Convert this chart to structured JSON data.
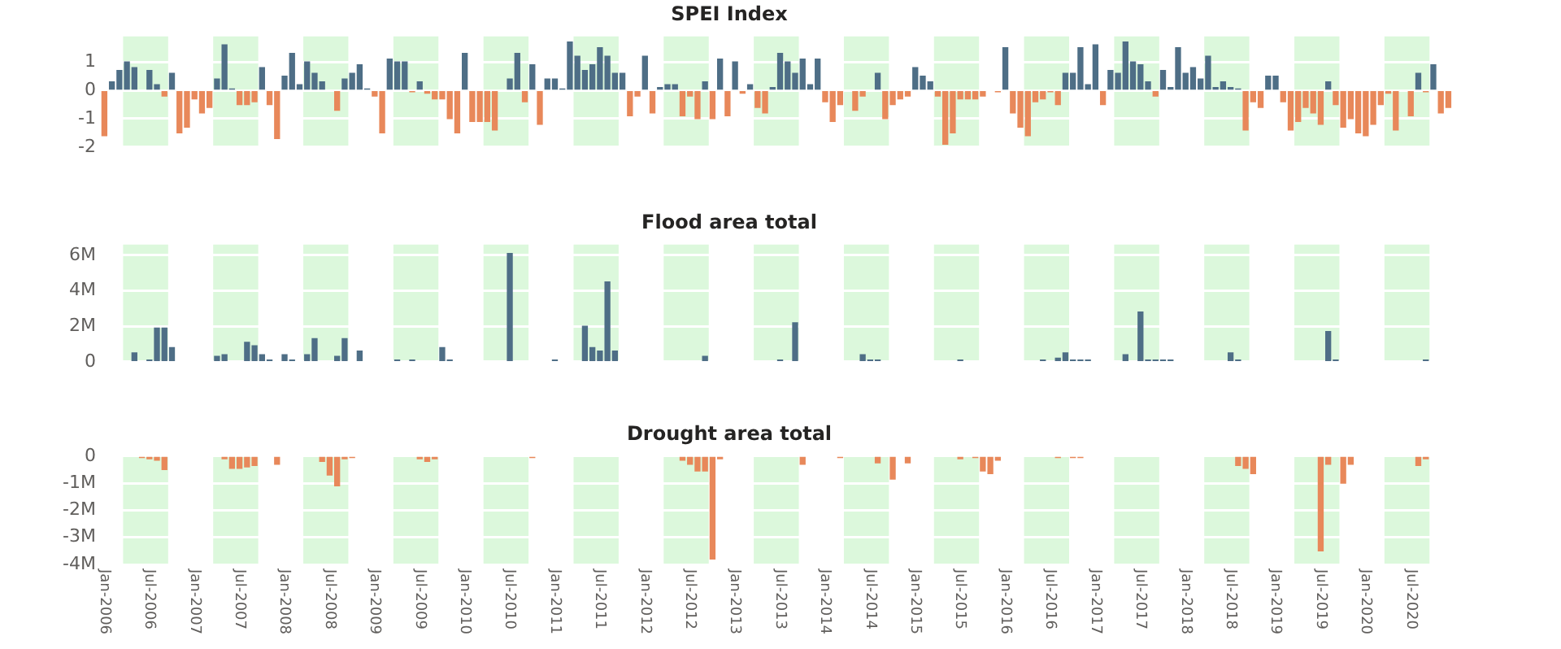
{
  "chart_data": [
    {
      "type": "bar",
      "title": "SPEI Index",
      "tick_labels": "y",
      "grid": "y",
      "x": [
        "2006-01",
        "2006-02",
        "2006-03",
        "2006-04",
        "2006-05",
        "2006-06",
        "2006-07",
        "2006-08",
        "2006-09",
        "2006-10",
        "2006-11",
        "2006-12",
        "2007-01",
        "2007-02",
        "2007-03",
        "2007-04",
        "2007-05",
        "2007-06",
        "2007-07",
        "2007-08",
        "2007-09",
        "2007-10",
        "2007-11",
        "2007-12",
        "2008-01",
        "2008-02",
        "2008-03",
        "2008-04",
        "2008-05",
        "2008-06",
        "2008-07",
        "2008-08",
        "2008-09",
        "2008-10",
        "2008-11",
        "2008-12",
        "2009-01",
        "2009-02",
        "2009-03",
        "2009-04",
        "2009-05",
        "2009-06",
        "2009-07",
        "2009-08",
        "2009-09",
        "2009-10",
        "2009-11",
        "2009-12",
        "2010-01",
        "2010-02",
        "2010-03",
        "2010-04",
        "2010-05",
        "2010-06",
        "2010-07",
        "2010-08",
        "2010-09",
        "2010-10",
        "2010-11",
        "2010-12",
        "2011-01",
        "2011-02",
        "2011-03",
        "2011-04",
        "2011-05",
        "2011-06",
        "2011-07",
        "2011-08",
        "2011-09",
        "2011-10",
        "2011-11",
        "2011-12",
        "2012-01",
        "2012-02",
        "2012-03",
        "2012-04",
        "2012-05",
        "2012-06",
        "2012-07",
        "2012-08",
        "2012-09",
        "2012-10",
        "2012-11",
        "2012-12",
        "2013-01",
        "2013-02",
        "2013-03",
        "2013-04",
        "2013-05",
        "2013-06",
        "2013-07",
        "2013-08",
        "2013-09",
        "2013-10",
        "2013-11",
        "2013-12",
        "2014-01",
        "2014-02",
        "2014-03",
        "2014-04",
        "2014-05",
        "2014-06",
        "2014-07",
        "2014-08",
        "2014-09",
        "2014-10",
        "2014-11",
        "2014-12",
        "2015-01",
        "2015-02",
        "2015-03",
        "2015-04",
        "2015-05",
        "2015-06",
        "2015-07",
        "2015-08",
        "2015-09",
        "2015-10",
        "2015-11",
        "2015-12",
        "2016-01",
        "2016-02",
        "2016-03",
        "2016-04",
        "2016-05",
        "2016-06",
        "2016-07",
        "2016-08",
        "2016-09",
        "2016-10",
        "2016-11",
        "2016-12",
        "2017-01",
        "2017-02",
        "2017-03",
        "2017-04",
        "2017-05",
        "2017-06",
        "2017-07",
        "2017-08",
        "2017-09",
        "2017-10",
        "2017-11",
        "2017-12",
        "2018-01",
        "2018-02",
        "2018-03",
        "2018-04",
        "2018-05",
        "2018-06",
        "2018-07",
        "2018-08",
        "2018-09",
        "2018-10",
        "2018-11",
        "2018-12",
        "2019-01",
        "2019-02",
        "2019-03",
        "2019-04",
        "2019-05",
        "2019-06",
        "2019-07",
        "2019-08",
        "2019-09",
        "2019-10",
        "2019-11",
        "2019-12",
        "2020-01",
        "2020-02",
        "2020-03",
        "2020-04",
        "2020-05",
        "2020-06",
        "2020-07",
        "2020-08",
        "2020-09",
        "2020-10",
        "2020-11",
        "2020-12"
      ],
      "values": [
        -1.6,
        0.3,
        0.7,
        1.0,
        0.8,
        null,
        0.7,
        0.2,
        -0.2,
        0.6,
        -1.5,
        -1.3,
        -0.3,
        -0.8,
        -0.6,
        0.4,
        1.6,
        0.05,
        -0.5,
        -0.5,
        -0.4,
        0.8,
        -0.5,
        -1.7,
        0.5,
        1.3,
        0.2,
        1.0,
        0.6,
        0.3,
        null,
        -0.7,
        0.4,
        0.6,
        0.9,
        0.05,
        -0.2,
        -1.5,
        1.1,
        1.0,
        1.0,
        -0.05,
        0.3,
        -0.1,
        -0.3,
        -0.3,
        -1.0,
        -1.5,
        1.3,
        -1.1,
        -1.1,
        -1.1,
        -1.4,
        null,
        0.4,
        1.3,
        -0.4,
        0.9,
        -1.2,
        0.4,
        0.4,
        0.05,
        1.7,
        1.2,
        0.7,
        0.9,
        1.5,
        1.2,
        0.6,
        0.6,
        -0.9,
        -0.2,
        1.2,
        -0.8,
        0.1,
        0.2,
        0.2,
        -0.9,
        -0.2,
        -1.0,
        0.3,
        -1.0,
        1.1,
        -0.9,
        1.0,
        -0.1,
        0.2,
        -0.6,
        -0.8,
        0.1,
        1.3,
        1.0,
        0.6,
        1.1,
        0.2,
        1.1,
        -0.4,
        -1.1,
        -0.5,
        null,
        -0.7,
        -0.2,
        null,
        0.6,
        -1.0,
        -0.5,
        -0.3,
        -0.2,
        0.8,
        0.5,
        0.3,
        -0.2,
        -1.9,
        -1.5,
        -0.3,
        -0.3,
        -0.3,
        -0.2,
        null,
        -0.05,
        1.5,
        -0.8,
        -1.3,
        -1.6,
        -0.4,
        -0.3,
        -0.05,
        -0.5,
        0.6,
        0.6,
        1.5,
        0.2,
        1.6,
        -0.5,
        0.7,
        0.6,
        1.7,
        1.0,
        0.9,
        0.3,
        -0.2,
        0.7,
        0.1,
        1.5,
        0.6,
        0.8,
        0.4,
        1.2,
        0.1,
        0.3,
        0.1,
        0.05,
        -1.4,
        -0.4,
        -0.6,
        0.5,
        0.5,
        -0.4,
        -1.4,
        -1.1,
        -0.6,
        -0.8,
        -1.2,
        0.3,
        -0.5,
        -1.3,
        -1.0,
        -1.5,
        -1.6,
        -1.2,
        -0.5,
        -0.1,
        -1.4,
        null,
        -0.9,
        0.6,
        -0.05,
        0.9,
        -0.8,
        -0.6
      ],
      "colors": [
        "#e8885a",
        "#4e6e86",
        "#4e6e86",
        "#4e6e86",
        "#4e6e86",
        null,
        "#4e6e86",
        "#4e6e86",
        "#e8885a",
        "#4e6e86",
        "#e8885a",
        "#e8885a",
        "#e8885a",
        "#e8885a",
        "#e8885a",
        "#4e6e86",
        "#4e6e86",
        "#4e6e86",
        "#e8885a",
        "#e8885a",
        "#e8885a",
        "#4e6e86",
        "#e8885a",
        "#e8885a",
        "#4e6e86",
        "#4e6e86",
        "#4e6e86",
        "#4e6e86",
        "#4e6e86",
        "#4e6e86",
        null,
        "#e8885a",
        "#4e6e86",
        "#4e6e86",
        "#4e6e86",
        "#4e6e86",
        "#e8885a",
        "#e8885a",
        "#4e6e86",
        "#4e6e86",
        "#4e6e86",
        "#e8885a",
        "#4e6e86",
        "#e8885a",
        "#e8885a",
        "#e8885a",
        "#e8885a",
        "#e8885a",
        "#4e6e86",
        "#e8885a",
        "#e8885a",
        "#e8885a",
        "#e8885a",
        null,
        "#4e6e86",
        "#4e6e86",
        "#e8885a",
        "#4e6e86",
        "#e8885a",
        "#4e6e86",
        "#4e6e86",
        "#4e6e86",
        "#4e6e86",
        "#4e6e86",
        "#4e6e86",
        "#4e6e86",
        "#4e6e86",
        "#4e6e86",
        "#4e6e86",
        "#4e6e86",
        "#e8885a",
        "#e8885a",
        "#4e6e86",
        "#e8885a",
        "#4e6e86",
        "#4e6e86",
        "#4e6e86",
        "#e8885a",
        "#e8885a",
        "#e8885a",
        "#4e6e86",
        "#e8885a",
        "#4e6e86",
        "#e8885a",
        "#4e6e86",
        "#e8885a",
        "#4e6e86",
        "#e8885a",
        "#e8885a",
        "#4e6e86",
        "#4e6e86",
        "#4e6e86",
        "#4e6e86",
        "#4e6e86",
        "#4e6e86",
        "#4e6e86",
        "#e8885a",
        "#e8885a",
        "#e8885a",
        null,
        "#e8885a",
        "#e8885a",
        null,
        "#4e6e86",
        "#e8885a",
        "#e8885a",
        "#e8885a",
        "#e8885a",
        "#4e6e86",
        "#4e6e86",
        "#4e6e86",
        "#e8885a",
        "#e8885a",
        "#e8885a",
        "#e8885a",
        "#e8885a",
        "#e8885a",
        "#e8885a",
        null,
        "#e8885a",
        "#4e6e86",
        "#e8885a",
        "#e8885a",
        "#e8885a",
        "#e8885a",
        "#e8885a",
        "#e8885a",
        "#e8885a",
        "#4e6e86",
        "#4e6e86",
        "#4e6e86",
        "#4e6e86",
        "#4e6e86",
        "#e8885a",
        "#4e6e86",
        "#4e6e86",
        "#4e6e86",
        "#4e6e86",
        "#4e6e86",
        "#4e6e86",
        "#e8885a",
        "#4e6e86",
        "#4e6e86",
        "#4e6e86",
        "#4e6e86",
        "#4e6e86",
        "#4e6e86",
        "#4e6e86",
        "#4e6e86",
        "#4e6e86",
        "#4e6e86",
        "#4e6e86",
        "#e8885a",
        "#e8885a",
        "#e8885a",
        "#4e6e86",
        "#4e6e86",
        "#e8885a",
        "#e8885a",
        "#e8885a",
        "#e8885a",
        "#e8885a",
        "#e8885a",
        "#4e6e86",
        "#e8885a",
        "#e8885a",
        "#e8885a",
        "#e8885a",
        "#e8885a",
        "#e8885a",
        "#e8885a",
        "#e8885a",
        "#e8885a",
        null,
        "#e8885a",
        "#4e6e86",
        "#e8885a",
        "#4e6e86",
        "#e8885a",
        "#e8885a"
      ],
      "xlim": [
        "2005-12-17",
        "2021-01-12"
      ],
      "ylim": [
        -2,
        1.9
      ],
      "yticks": [
        -2,
        -1,
        0,
        1
      ],
      "bands": [
        {
          "axis": "x",
          "from": "2006-03-16",
          "to": "2006-09-16",
          "color": "#dcf8dc"
        },
        {
          "axis": "x",
          "from": "2007-03-16",
          "to": "2007-09-16",
          "color": "#dcf8dc"
        },
        {
          "axis": "x",
          "from": "2008-03-16",
          "to": "2008-09-16",
          "color": "#dcf8dc"
        },
        {
          "axis": "x",
          "from": "2009-03-16",
          "to": "2009-09-16",
          "color": "#dcf8dc"
        },
        {
          "axis": "x",
          "from": "2010-03-16",
          "to": "2010-09-16",
          "color": "#dcf8dc"
        },
        {
          "axis": "x",
          "from": "2011-03-16",
          "to": "2011-09-16",
          "color": "#dcf8dc"
        },
        {
          "axis": "x",
          "from": "2012-03-16",
          "to": "2012-09-16",
          "color": "#dcf8dc"
        },
        {
          "axis": "x",
          "from": "2013-03-16",
          "to": "2013-09-16",
          "color": "#dcf8dc"
        },
        {
          "axis": "x",
          "from": "2014-03-16",
          "to": "2014-09-16",
          "color": "#dcf8dc"
        },
        {
          "axis": "x",
          "from": "2015-03-16",
          "to": "2015-09-16",
          "color": "#dcf8dc"
        },
        {
          "axis": "x",
          "from": "2016-03-16",
          "to": "2016-09-16",
          "color": "#dcf8dc"
        },
        {
          "axis": "x",
          "from": "2017-03-16",
          "to": "2017-09-16",
          "color": "#dcf8dc"
        },
        {
          "axis": "x",
          "from": "2018-03-16",
          "to": "2018-09-16",
          "color": "#dcf8dc"
        },
        {
          "axis": "x",
          "from": "2019-03-16",
          "to": "2019-09-16",
          "color": "#dcf8dc"
        },
        {
          "axis": "x",
          "from": "2020-03-16",
          "to": "2020-09-16",
          "color": "#dcf8dc"
        }
      ]
    },
    {
      "type": "bar",
      "title": "Flood area total",
      "tick_labels": "y",
      "grid": "y",
      "color": "#4e6e86",
      "x": [
        "2006-05",
        "2006-07",
        "2006-08",
        "2006-09",
        "2006-10",
        "2007-04",
        "2007-05",
        "2007-08",
        "2007-09",
        "2007-10",
        "2007-11",
        "2008-01",
        "2008-02",
        "2008-04",
        "2008-05",
        "2008-08",
        "2008-09",
        "2008-11",
        "2009-04",
        "2009-06",
        "2009-10",
        "2009-11",
        "2010-07",
        "2011-01",
        "2011-05",
        "2011-06",
        "2011-07",
        "2011-08",
        "2011-09",
        "2012-09",
        "2013-07",
        "2013-09",
        "2014-06",
        "2014-07",
        "2014-08",
        "2015-07",
        "2016-06",
        "2016-08",
        "2016-09",
        "2016-10",
        "2016-11",
        "2016-12",
        "2017-05",
        "2017-07",
        "2017-08",
        "2017-09",
        "2017-10",
        "2017-11",
        "2018-07",
        "2018-08",
        "2019-08",
        "2019-09",
        "2020-09"
      ],
      "values": [
        500000,
        100000,
        1900000,
        1900000,
        800000,
        300000,
        400000,
        1100000,
        900000,
        400000,
        100000,
        400000,
        100000,
        400000,
        1300000,
        300000,
        1300000,
        600000,
        100000,
        100000,
        800000,
        100000,
        6100000,
        100000,
        2000000,
        800000,
        600000,
        4500000,
        600000,
        300000,
        100000,
        2200000,
        400000,
        100000,
        100000,
        100000,
        100000,
        200000,
        500000,
        100000,
        100000,
        100000,
        400000,
        2800000,
        100000,
        100000,
        100000,
        100000,
        500000,
        100000,
        1700000,
        100000,
        100000
      ],
      "xlim": [
        "2005-12-17",
        "2021-01-12"
      ],
      "ylim": [
        0,
        6600000
      ],
      "yticks": [
        0,
        {
          "value": 2000000,
          "label": "2M"
        },
        {
          "value": 4000000,
          "label": "4M"
        },
        {
          "value": 6000000,
          "label": "6M"
        }
      ],
      "bands": [
        {
          "axis": "x",
          "from": "2006-03-16",
          "to": "2006-09-16",
          "color": "#dcf8dc"
        },
        {
          "axis": "x",
          "from": "2007-03-16",
          "to": "2007-09-16",
          "color": "#dcf8dc"
        },
        {
          "axis": "x",
          "from": "2008-03-16",
          "to": "2008-09-16",
          "color": "#dcf8dc"
        },
        {
          "axis": "x",
          "from": "2009-03-16",
          "to": "2009-09-16",
          "color": "#dcf8dc"
        },
        {
          "axis": "x",
          "from": "2010-03-16",
          "to": "2010-09-16",
          "color": "#dcf8dc"
        },
        {
          "axis": "x",
          "from": "2011-03-16",
          "to": "2011-09-16",
          "color": "#dcf8dc"
        },
        {
          "axis": "x",
          "from": "2012-03-16",
          "to": "2012-09-16",
          "color": "#dcf8dc"
        },
        {
          "axis": "x",
          "from": "2013-03-16",
          "to": "2013-09-16",
          "color": "#dcf8dc"
        },
        {
          "axis": "x",
          "from": "2014-03-16",
          "to": "2014-09-16",
          "color": "#dcf8dc"
        },
        {
          "axis": "x",
          "from": "2015-03-16",
          "to": "2015-09-16",
          "color": "#dcf8dc"
        },
        {
          "axis": "x",
          "from": "2016-03-16",
          "to": "2016-09-16",
          "color": "#dcf8dc"
        },
        {
          "axis": "x",
          "from": "2017-03-16",
          "to": "2017-09-16",
          "color": "#dcf8dc"
        },
        {
          "axis": "x",
          "from": "2018-03-16",
          "to": "2018-09-16",
          "color": "#dcf8dc"
        },
        {
          "axis": "x",
          "from": "2019-03-16",
          "to": "2019-09-16",
          "color": "#dcf8dc"
        },
        {
          "axis": "x",
          "from": "2020-03-16",
          "to": "2020-09-16",
          "color": "#dcf8dc"
        }
      ]
    },
    {
      "type": "bar",
      "title": "Drought area total",
      "grid": "y",
      "color": "#e8885a",
      "x": [
        "2006-06",
        "2006-07",
        "2006-08",
        "2006-09",
        "2007-05",
        "2007-06",
        "2007-07",
        "2007-08",
        "2007-09",
        "2007-12",
        "2008-06",
        "2008-07",
        "2008-08",
        "2008-09",
        "2008-10",
        "2009-07",
        "2009-08",
        "2009-09",
        "2010-10",
        "2012-06",
        "2012-07",
        "2012-08",
        "2012-09",
        "2012-10",
        "2012-11",
        "2013-10",
        "2014-03",
        "2014-08",
        "2014-10",
        "2014-12",
        "2015-07",
        "2015-09",
        "2015-10",
        "2015-11",
        "2015-12",
        "2016-08",
        "2016-10",
        "2016-11",
        "2018-08",
        "2018-09",
        "2018-10",
        "2019-07",
        "2019-08",
        "2019-10",
        "2019-11",
        "2020-08",
        "2020-09"
      ],
      "values": [
        -50000,
        -100000,
        -150000,
        -500000,
        -100000,
        -450000,
        -450000,
        -400000,
        -350000,
        -300000,
        -200000,
        -700000,
        -1100000,
        -100000,
        -50000,
        -100000,
        -200000,
        -100000,
        -50000,
        -150000,
        -300000,
        -550000,
        -550000,
        -3800000,
        -100000,
        -300000,
        -50000,
        -250000,
        -850000,
        -250000,
        -100000,
        -50000,
        -550000,
        -650000,
        -150000,
        -50000,
        -50000,
        -50000,
        -350000,
        -450000,
        -650000,
        -3500000,
        -300000,
        -1000000,
        -300000,
        -350000,
        -100000
      ],
      "xlim": [
        "2005-12-17",
        "2021-01-12"
      ],
      "ylim": [
        -4000000,
        0
      ],
      "yticks": [
        {
          "value": -4000000,
          "label": "-4M"
        },
        {
          "value": -3000000,
          "label": "-3M"
        },
        {
          "value": -2000000,
          "label": "-2M"
        },
        {
          "value": -1000000,
          "label": "-1M"
        },
        0
      ],
      "xticks": [
        {
          "value": "2006-01",
          "label": "Jan-2006"
        },
        {
          "value": "2006-07",
          "label": "Jul-2006"
        },
        {
          "value": "2007-01",
          "label": "Jan-2007"
        },
        {
          "value": "2007-07",
          "label": "Jul-2007"
        },
        {
          "value": "2008-01",
          "label": "Jan-2008"
        },
        {
          "value": "2008-07",
          "label": "Jul-2008"
        },
        {
          "value": "2009-01",
          "label": "Jan-2009"
        },
        {
          "value": "2009-07",
          "label": "Jul-2009"
        },
        {
          "value": "2010-01",
          "label": "Jan-2010"
        },
        {
          "value": "2010-07",
          "label": "Jul-2010"
        },
        {
          "value": "2011-01",
          "label": "Jan-2011"
        },
        {
          "value": "2011-07",
          "label": "Jul-2011"
        },
        {
          "value": "2012-01",
          "label": "Jan-2012"
        },
        {
          "value": "2012-07",
          "label": "Jul-2012"
        },
        {
          "value": "2013-01",
          "label": "Jan-2013"
        },
        {
          "value": "2013-07",
          "label": "Jul-2013"
        },
        {
          "value": "2014-01",
          "label": "Jan-2014"
        },
        {
          "value": "2014-07",
          "label": "Jul-2014"
        },
        {
          "value": "2015-01",
          "label": "Jan-2015"
        },
        {
          "value": "2015-07",
          "label": "Jul-2015"
        },
        {
          "value": "2016-01",
          "label": "Jan-2016"
        },
        {
          "value": "2016-07",
          "label": "Jul-2016"
        },
        {
          "value": "2017-01",
          "label": "Jan-2017"
        },
        {
          "value": "2017-07",
          "label": "Jul-2017"
        },
        {
          "value": "2018-01",
          "label": "Jan-2018"
        },
        {
          "value": "2018-07",
          "label": "Jul-2018"
        },
        {
          "value": "2019-01",
          "label": "Jan-2019"
        },
        {
          "value": "2019-07",
          "label": "Jul-2019"
        },
        {
          "value": "2020-01",
          "label": "Jan-2020"
        },
        {
          "value": "2020-07",
          "label": "Jul-2020"
        }
      ],
      "bands": [
        {
          "axis": "x",
          "from": "2006-03-16",
          "to": "2006-09-16",
          "color": "#dcf8dc"
        },
        {
          "axis": "x",
          "from": "2007-03-16",
          "to": "2007-09-16",
          "color": "#dcf8dc"
        },
        {
          "axis": "x",
          "from": "2008-03-16",
          "to": "2008-09-16",
          "color": "#dcf8dc"
        },
        {
          "axis": "x",
          "from": "2009-03-16",
          "to": "2009-09-16",
          "color": "#dcf8dc"
        },
        {
          "axis": "x",
          "from": "2010-03-16",
          "to": "2010-09-16",
          "color": "#dcf8dc"
        },
        {
          "axis": "x",
          "from": "2011-03-16",
          "to": "2011-09-16",
          "color": "#dcf8dc"
        },
        {
          "axis": "x",
          "from": "2012-03-16",
          "to": "2012-09-16",
          "color": "#dcf8dc"
        },
        {
          "axis": "x",
          "from": "2013-03-16",
          "to": "2013-09-16",
          "color": "#dcf8dc"
        },
        {
          "axis": "x",
          "from": "2014-03-16",
          "to": "2014-09-16",
          "color": "#dcf8dc"
        },
        {
          "axis": "x",
          "from": "2015-03-16",
          "to": "2015-09-16",
          "color": "#dcf8dc"
        },
        {
          "axis": "x",
          "from": "2016-03-16",
          "to": "2016-09-16",
          "color": "#dcf8dc"
        },
        {
          "axis": "x",
          "from": "2017-03-16",
          "to": "2017-09-16",
          "color": "#dcf8dc"
        },
        {
          "axis": "x",
          "from": "2018-03-16",
          "to": "2018-09-16",
          "color": "#dcf8dc"
        },
        {
          "axis": "x",
          "from": "2019-03-16",
          "to": "2019-09-16",
          "color": "#dcf8dc"
        },
        {
          "axis": "x",
          "from": "2020-03-16",
          "to": "2020-09-16",
          "color": "#dcf8dc"
        }
      ]
    }
  ]
}
